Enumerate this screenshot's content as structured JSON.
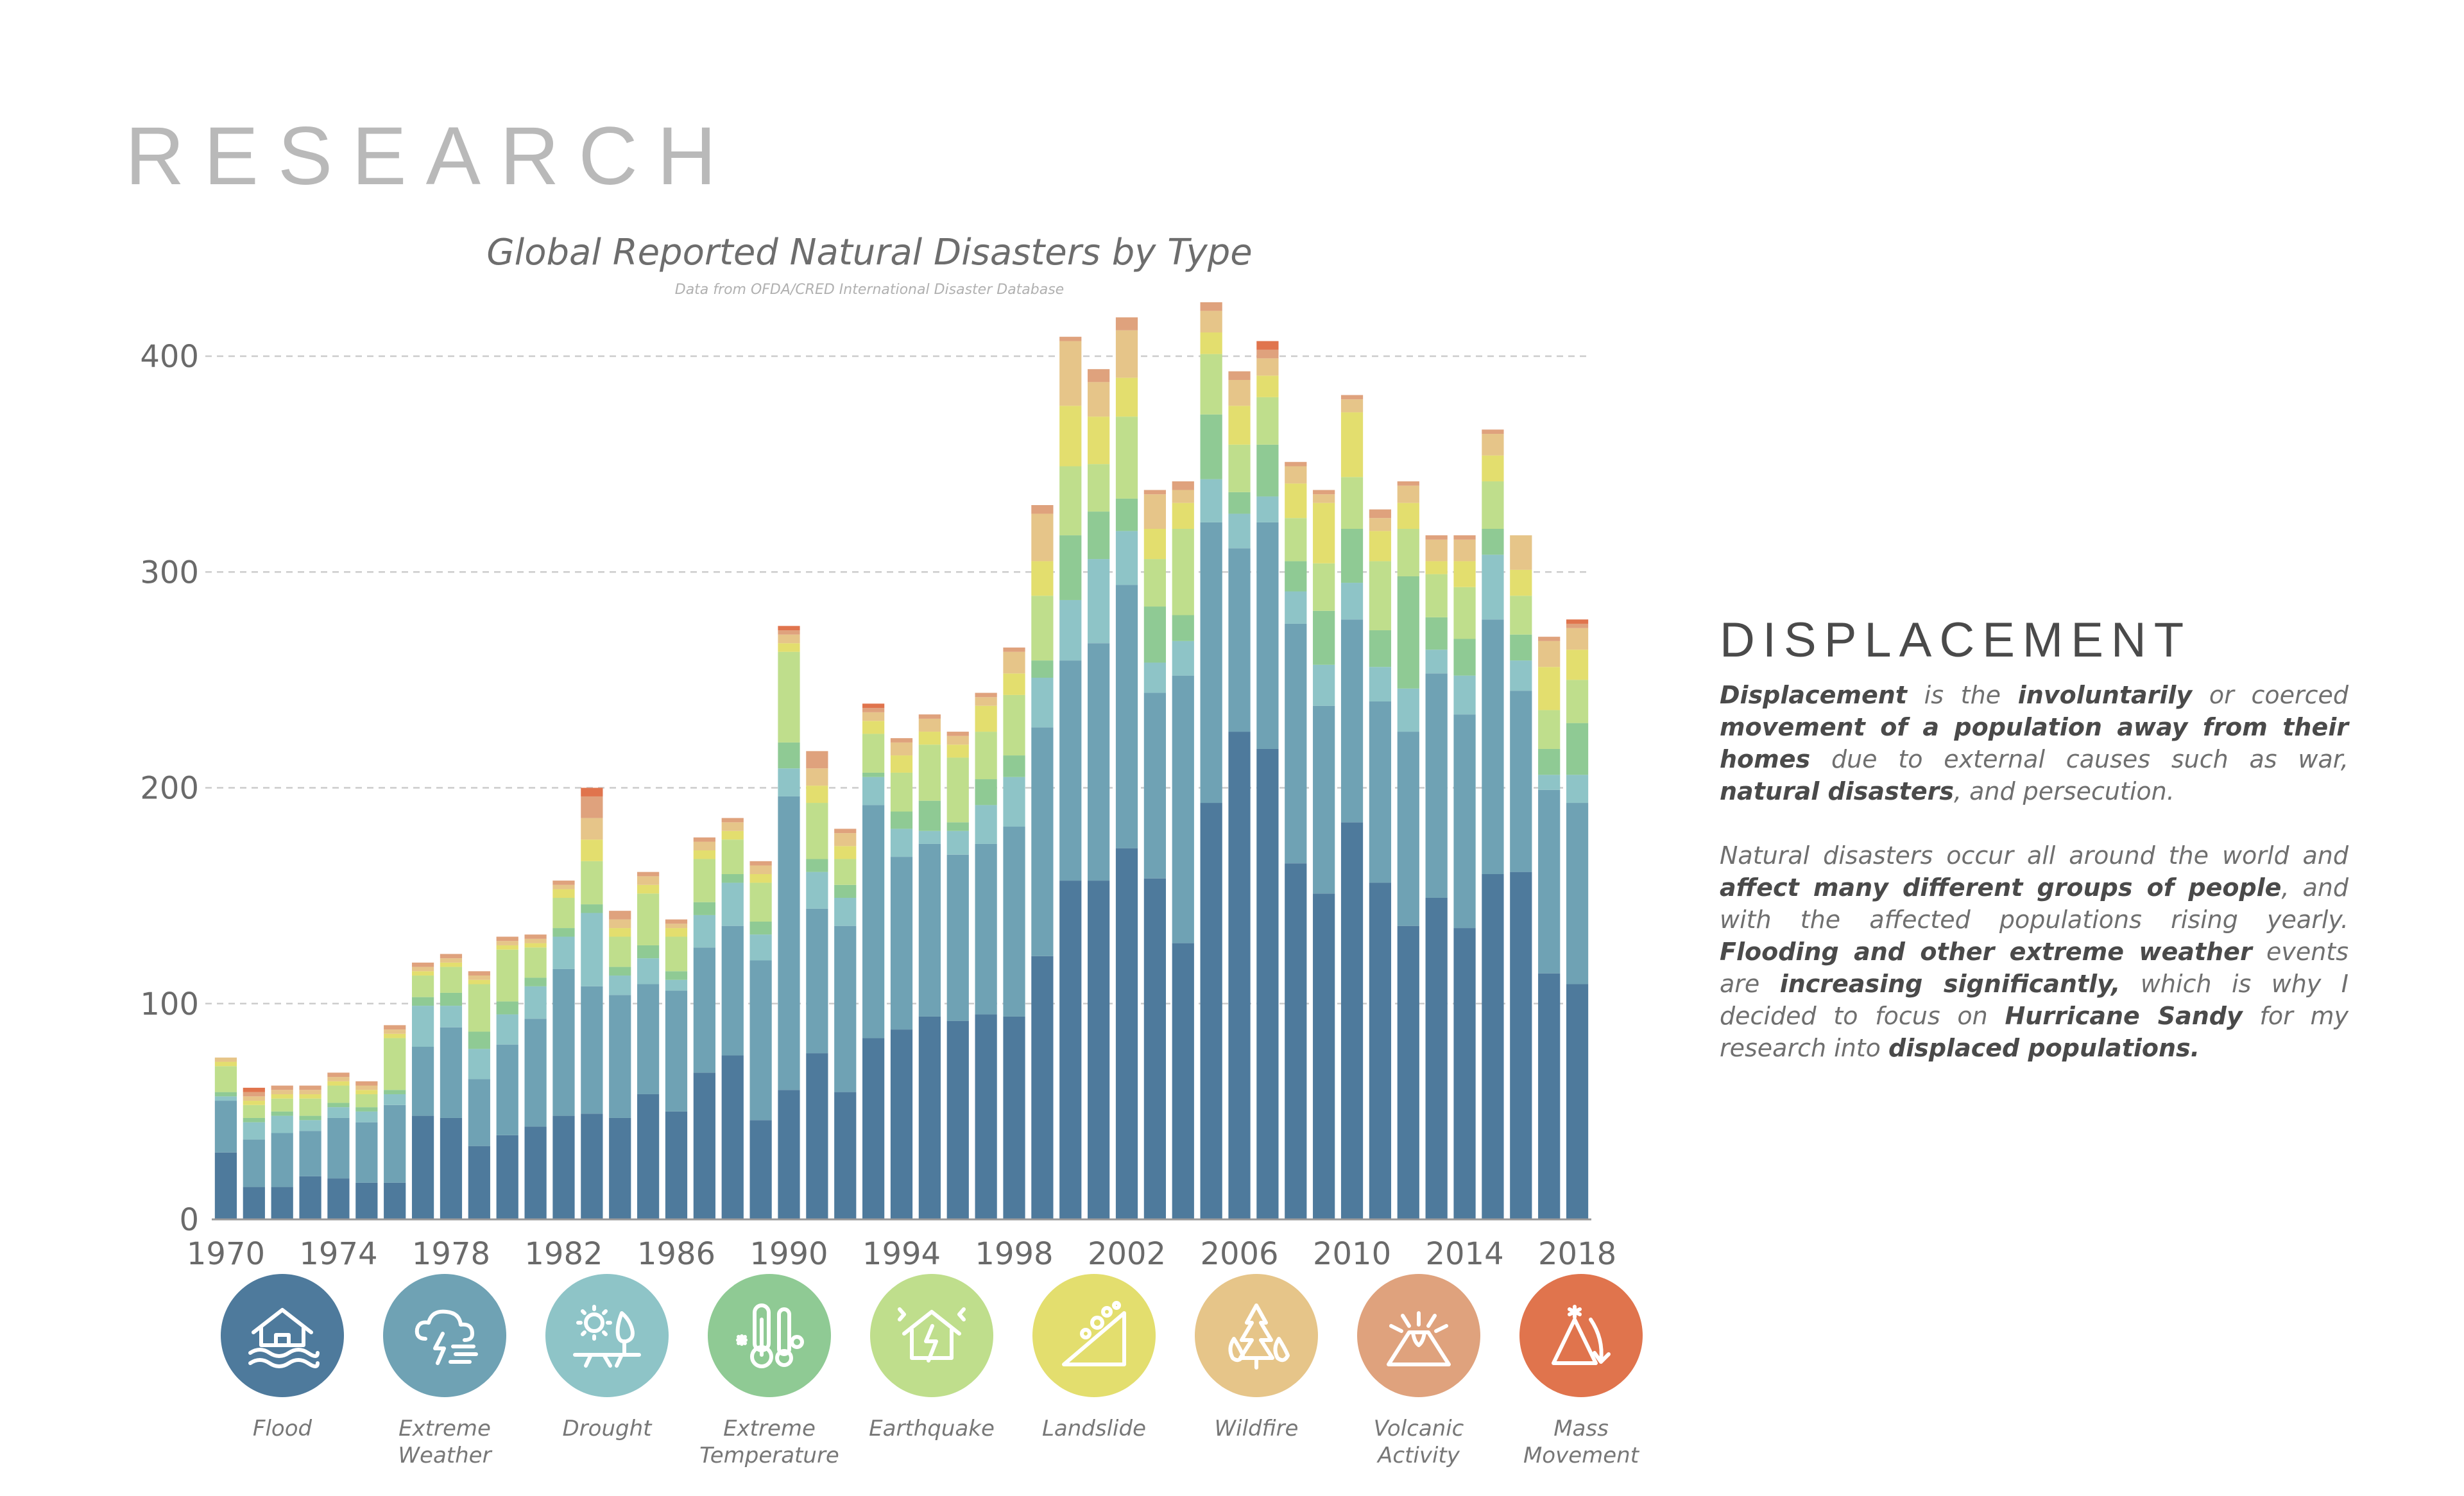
{
  "page": {
    "title": "RESEARCH"
  },
  "chart_data": {
    "type": "bar",
    "stacked": true,
    "title": "Global Reported Natural Disasters by Type",
    "subtitle": "Data from OFDA/CRED International Disaster Database",
    "xlabel": "",
    "ylabel": "",
    "ylim": [
      0,
      400
    ],
    "yticks": [
      0,
      100,
      200,
      300,
      400
    ],
    "xtick_labels": [
      "1970",
      "1974",
      "1978",
      "1982",
      "1986",
      "1990",
      "1994",
      "1998",
      "2002",
      "2006",
      "2010",
      "2014",
      "2018"
    ],
    "grid": true,
    "categories": [
      "1970",
      "1971",
      "1972",
      "1973",
      "1974",
      "1975",
      "1976",
      "1977",
      "1978",
      "1979",
      "1980",
      "1981",
      "1982",
      "1983",
      "1984",
      "1985",
      "1986",
      "1987",
      "1988",
      "1989",
      "1990",
      "1991",
      "1992",
      "1993",
      "1994",
      "1995",
      "1996",
      "1997",
      "1998",
      "1999",
      "2000",
      "2001",
      "2002",
      "2003",
      "2004",
      "2005",
      "2006",
      "2007",
      "2008",
      "2009",
      "2010",
      "2011",
      "2012",
      "2013",
      "2014",
      "2015",
      "2016",
      "2017",
      "2018"
    ],
    "series": [
      {
        "name": "Flood",
        "color": "#4e7a9c",
        "values": [
          31,
          15,
          15,
          20,
          19,
          17,
          17,
          48,
          47,
          34,
          39,
          43,
          48,
          49,
          47,
          58,
          50,
          68,
          76,
          46,
          60,
          77,
          59,
          84,
          88,
          94,
          92,
          95,
          94,
          122,
          157,
          157,
          172,
          158,
          128,
          193,
          226,
          218,
          165,
          151,
          184,
          156,
          136,
          149,
          135,
          160,
          161,
          114,
          109
        ]
      },
      {
        "name": "Extreme Weather",
        "color": "#6fa2b4",
        "values": [
          24,
          22,
          25,
          21,
          28,
          28,
          36,
          32,
          42,
          31,
          42,
          50,
          68,
          59,
          57,
          51,
          56,
          58,
          60,
          74,
          136,
          67,
          77,
          108,
          80,
          80,
          77,
          79,
          88,
          106,
          102,
          110,
          122,
          86,
          124,
          130,
          85,
          105,
          111,
          87,
          94,
          84,
          90,
          104,
          99,
          118,
          84,
          85,
          84
        ]
      },
      {
        "name": "Drought",
        "color": "#8ec4c7",
        "values": [
          2,
          8,
          8,
          5,
          5,
          5,
          5,
          19,
          10,
          14,
          14,
          15,
          15,
          34,
          9,
          12,
          5,
          15,
          20,
          12,
          13,
          17,
          13,
          13,
          13,
          6,
          11,
          18,
          23,
          23,
          28,
          39,
          25,
          14,
          16,
          20,
          16,
          12,
          15,
          19,
          17,
          16,
          20,
          11,
          18,
          30,
          14,
          7,
          13
        ]
      },
      {
        "name": "Extreme Temperature",
        "color": "#8fca94",
        "values": [
          2,
          2,
          2,
          2,
          2,
          2,
          2,
          4,
          6,
          8,
          6,
          4,
          4,
          4,
          4,
          6,
          4,
          6,
          4,
          6,
          12,
          6,
          6,
          2,
          8,
          14,
          4,
          12,
          10,
          8,
          30,
          22,
          15,
          26,
          12,
          30,
          10,
          24,
          14,
          25,
          25,
          17,
          52,
          15,
          17,
          12,
          12,
          12,
          24
        ]
      },
      {
        "name": "Earthquake",
        "color": "#bfde8c",
        "values": [
          12,
          6,
          6,
          8,
          8,
          6,
          24,
          10,
          12,
          22,
          24,
          14,
          14,
          20,
          14,
          24,
          16,
          20,
          16,
          18,
          42,
          26,
          12,
          18,
          18,
          26,
          30,
          22,
          28,
          30,
          32,
          22,
          38,
          22,
          40,
          28,
          22,
          22,
          20,
          22,
          24,
          32,
          22,
          20,
          24,
          22,
          18,
          18,
          20
        ]
      },
      {
        "name": "Landslide",
        "color": "#e3de6e",
        "values": [
          2,
          2,
          2,
          2,
          2,
          2,
          2,
          2,
          2,
          2,
          2,
          2,
          4,
          10,
          4,
          4,
          4,
          4,
          4,
          4,
          4,
          8,
          6,
          6,
          8,
          6,
          6,
          12,
          10,
          16,
          28,
          22,
          18,
          14,
          12,
          10,
          18,
          10,
          16,
          28,
          30,
          14,
          12,
          6,
          12,
          12,
          12,
          20,
          14
        ]
      },
      {
        "name": "Wildfire",
        "color": "#e6c589",
        "values": [
          2,
          2,
          2,
          2,
          2,
          2,
          2,
          2,
          2,
          2,
          2,
          2,
          2,
          10,
          4,
          4,
          2,
          4,
          4,
          4,
          4,
          8,
          6,
          4,
          6,
          6,
          4,
          4,
          10,
          22,
          30,
          16,
          22,
          16,
          6,
          10,
          12,
          8,
          8,
          4,
          6,
          6,
          8,
          10,
          10,
          10,
          16,
          12,
          10
        ]
      },
      {
        "name": "Volcanic Activity",
        "color": "#dfa27d",
        "values": [
          0,
          2,
          2,
          2,
          2,
          2,
          2,
          2,
          2,
          2,
          2,
          2,
          2,
          10,
          4,
          2,
          2,
          2,
          2,
          2,
          2,
          8,
          2,
          2,
          2,
          2,
          2,
          2,
          2,
          4,
          2,
          6,
          6,
          2,
          4,
          4,
          4,
          4,
          2,
          2,
          2,
          4,
          2,
          2,
          2,
          2,
          0,
          2,
          2
        ]
      },
      {
        "name": "Mass Movement",
        "color": "#e0744d",
        "values": [
          0,
          2,
          0,
          0,
          0,
          0,
          0,
          0,
          0,
          0,
          0,
          0,
          0,
          4,
          0,
          0,
          0,
          0,
          0,
          0,
          2,
          0,
          0,
          2,
          0,
          0,
          0,
          0,
          0,
          0,
          0,
          0,
          0,
          0,
          0,
          0,
          0,
          4,
          0,
          0,
          0,
          0,
          0,
          0,
          0,
          0,
          0,
          0,
          2
        ]
      }
    ]
  },
  "legend": {
    "items": [
      {
        "label_line1": "Flood",
        "label_line2": "",
        "icon": "flood-icon",
        "color": "#4e7a9c"
      },
      {
        "label_line1": "Extreme",
        "label_line2": "Weather",
        "icon": "extreme-weather-icon",
        "color": "#6fa2b4"
      },
      {
        "label_line1": "Drought",
        "label_line2": "",
        "icon": "drought-icon",
        "color": "#8ec4c7"
      },
      {
        "label_line1": "Extreme",
        "label_line2": "Temperature",
        "icon": "extreme-temperature-icon",
        "color": "#8fca94"
      },
      {
        "label_line1": "Earthquake",
        "label_line2": "",
        "icon": "earthquake-icon",
        "color": "#bfde8c"
      },
      {
        "label_line1": "Landslide",
        "label_line2": "",
        "icon": "landslide-icon",
        "color": "#e3de6e"
      },
      {
        "label_line1": "Wildfire",
        "label_line2": "",
        "icon": "wildfire-icon",
        "color": "#e6c589"
      },
      {
        "label_line1": "Volcanic",
        "label_line2": "Activity",
        "icon": "volcanic-activity-icon",
        "color": "#dfa27d"
      },
      {
        "label_line1": "Mass",
        "label_line2": "Movement",
        "icon": "mass-movement-icon",
        "color": "#e0744d"
      }
    ]
  },
  "side_panel": {
    "title": "DISPLACEMENT",
    "para1": {
      "t1": "Displacement",
      "t2": " is the ",
      "t3": "involuntarily",
      "t4": " or coerced ",
      "t5": "movement of a population away from their homes",
      "t6": " due to external causes such as war, ",
      "t7": "natural disasters",
      "t8": ", and persecution."
    },
    "para2": {
      "t1": "Natural disasters occur all around the world and ",
      "t2": "affect many different groups of people",
      "t3": ", and with the affected populations rising yearly.  ",
      "t4": "Flooding and other extreme weather",
      "t5": " events are ",
      "t6": "increasing significantly,",
      "t7": " which is why I decided to focus on ",
      "t8": "Hurricane Sandy",
      "t9": " for my research into ",
      "t10": "displaced populations."
    }
  }
}
